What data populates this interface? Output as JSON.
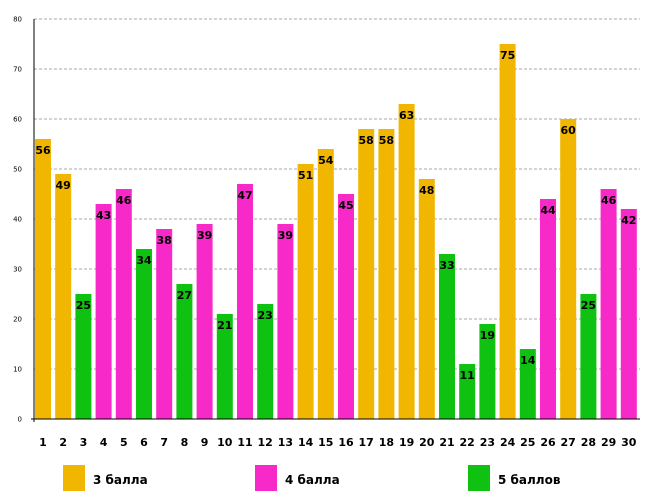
{
  "chart_data": {
    "type": "bar",
    "title": "",
    "xlabel": "",
    "ylabel": "",
    "ylim": [
      0,
      80
    ],
    "yticks": [
      0,
      10,
      20,
      30,
      40,
      50,
      60,
      70,
      80
    ],
    "grid": true,
    "categories": [
      "1",
      "2",
      "3",
      "4",
      "5",
      "6",
      "7",
      "8",
      "9",
      "10",
      "11",
      "12",
      "13",
      "14",
      "15",
      "16",
      "17",
      "18",
      "19",
      "20",
      "21",
      "22",
      "23",
      "24",
      "25",
      "26",
      "27",
      "28",
      "29",
      "30"
    ],
    "values": [
      56,
      49,
      25,
      43,
      46,
      34,
      38,
      27,
      39,
      21,
      47,
      23,
      39,
      51,
      54,
      45,
      58,
      58,
      63,
      48,
      33,
      11,
      19,
      75,
      14,
      44,
      60,
      25,
      46,
      42
    ],
    "point_series": [
      0,
      0,
      2,
      1,
      1,
      2,
      1,
      2,
      1,
      2,
      1,
      2,
      1,
      0,
      0,
      1,
      0,
      0,
      0,
      0,
      2,
      2,
      2,
      0,
      2,
      1,
      0,
      2,
      1,
      1
    ],
    "series": [
      {
        "name": "3 балла",
        "color": "#f1b700"
      },
      {
        "name": "4 балла",
        "color": "#f72ac9"
      },
      {
        "name": "5 баллов",
        "color": "#0fc110"
      }
    ],
    "legend_position": "bottom"
  }
}
